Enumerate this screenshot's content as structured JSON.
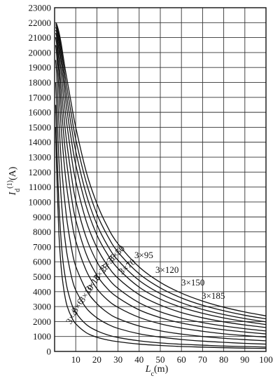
{
  "chart_data": {
    "type": "line",
    "xlabel": "L_c(m)",
    "ylabel": "I_d^(1)(A)",
    "xlabel_parts": {
      "main": "L",
      "sub": "c",
      "unit": "(m)"
    },
    "ylabel_parts": {
      "main": "I",
      "sub": "d",
      "sup": "(1)",
      "unit": "(A)"
    },
    "xlim": [
      0,
      100
    ],
    "ylim": [
      0,
      23000
    ],
    "grid": true,
    "x_ticks": [
      10,
      20,
      30,
      40,
      50,
      60,
      70,
      80,
      90,
      100
    ],
    "y_ticks": [
      0,
      1000,
      2000,
      3000,
      4000,
      5000,
      6000,
      7000,
      8000,
      9000,
      10000,
      11000,
      12000,
      13000,
      14000,
      15000,
      16000,
      17000,
      18000,
      19000,
      20000,
      21000,
      22000,
      23000
    ],
    "series": [
      {
        "name": "3×4",
        "x": [
          0.5,
          1,
          2,
          3,
          4,
          5,
          6,
          8,
          10,
          15,
          20,
          25,
          30,
          40,
          50,
          60,
          70,
          80,
          90,
          100
        ],
        "y": [
          15000,
          12000,
          8000,
          5800,
          4500,
          3600,
          3000,
          2300,
          1850,
          1250,
          950,
          770,
          650,
          490,
          400,
          330,
          290,
          250,
          220,
          200
        ]
      },
      {
        "name": "3×6",
        "x": [
          0.5,
          1,
          2,
          3,
          4,
          5,
          6,
          8,
          10,
          15,
          20,
          25,
          30,
          40,
          50,
          60,
          70,
          80,
          90,
          100
        ],
        "y": [
          16500,
          14000,
          10000,
          7600,
          6000,
          5000,
          4200,
          3200,
          2600,
          1800,
          1380,
          1110,
          930,
          710,
          570,
          480,
          420,
          360,
          330,
          290
        ]
      },
      {
        "name": "3×10",
        "x": [
          0.5,
          1,
          2,
          3,
          4,
          5,
          6,
          8,
          10,
          15,
          20,
          25,
          30,
          40,
          50,
          60,
          70,
          80,
          90,
          100
        ],
        "y": [
          18000,
          16500,
          13000,
          10500,
          8700,
          7400,
          6400,
          5000,
          4100,
          2900,
          2250,
          1830,
          1540,
          1180,
          960,
          800,
          690,
          610,
          540,
          490
        ]
      },
      {
        "name": "3×16",
        "x": [
          0.5,
          1,
          2,
          3,
          4,
          5,
          6,
          8,
          10,
          15,
          20,
          25,
          30,
          40,
          50,
          60,
          70,
          80,
          90,
          100
        ],
        "y": [
          19500,
          18500,
          15500,
          13000,
          11200,
          9800,
          8600,
          6900,
          5700,
          4100,
          3200,
          2600,
          2200,
          1700,
          1380,
          1160,
          1000,
          880,
          790,
          710
        ]
      },
      {
        "name": "3×25",
        "x": [
          0.5,
          1,
          2,
          3,
          4,
          5,
          6,
          8,
          10,
          15,
          20,
          25,
          30,
          40,
          50,
          60,
          70,
          80,
          90,
          100
        ],
        "y": [
          20500,
          19800,
          17500,
          15200,
          13400,
          11900,
          10700,
          8800,
          7400,
          5400,
          4200,
          3450,
          2950,
          2280,
          1850,
          1560,
          1350,
          1180,
          1060,
          960
        ]
      },
      {
        "name": "3×35",
        "x": [
          0.5,
          1,
          2,
          3,
          4,
          5,
          6,
          8,
          10,
          15,
          20,
          25,
          30,
          40,
          50,
          60,
          70,
          80,
          90,
          100
        ],
        "y": [
          21000,
          20500,
          18700,
          16700,
          15000,
          13500,
          12300,
          10300,
          8800,
          6500,
          5100,
          4200,
          3600,
          2780,
          2260,
          1900,
          1650,
          1450,
          1300,
          1170
        ]
      },
      {
        "name": "3×50",
        "x": [
          0.5,
          1,
          2,
          3,
          4,
          5,
          6,
          8,
          10,
          15,
          20,
          25,
          30,
          40,
          50,
          60,
          70,
          80,
          90,
          100
        ],
        "y": [
          21300,
          21000,
          19500,
          17800,
          16300,
          14900,
          13700,
          11700,
          10100,
          7600,
          6000,
          4950,
          4220,
          3260,
          2650,
          2230,
          1930,
          1700,
          1520,
          1370
        ]
      },
      {
        "name": "3×70",
        "x": [
          0.5,
          1,
          2,
          3,
          4,
          5,
          6,
          8,
          10,
          15,
          20,
          25,
          30,
          40,
          50,
          60,
          70,
          80,
          90,
          100
        ],
        "y": [
          21500,
          21300,
          20200,
          18800,
          17400,
          16100,
          15000,
          13000,
          11400,
          8700,
          6950,
          5750,
          4900,
          3800,
          3100,
          2600,
          2250,
          1980,
          1770,
          1600
        ]
      },
      {
        "name": "3×95",
        "x": [
          0.5,
          1,
          2,
          3,
          4,
          5,
          6,
          8,
          10,
          15,
          20,
          25,
          30,
          40,
          50,
          60,
          70,
          80,
          90,
          100
        ],
        "y": [
          21700,
          21500,
          20700,
          19500,
          18300,
          17100,
          16000,
          14100,
          12500,
          9700,
          7800,
          6500,
          5550,
          4300,
          3500,
          2950,
          2550,
          2240,
          2000,
          1800
        ]
      },
      {
        "name": "3×120",
        "x": [
          0.5,
          1,
          2,
          3,
          4,
          5,
          6,
          8,
          10,
          15,
          20,
          25,
          30,
          40,
          50,
          60,
          70,
          80,
          90,
          100
        ],
        "y": [
          21800,
          21700,
          21000,
          20000,
          18900,
          17800,
          16800,
          15000,
          13400,
          10500,
          8500,
          7100,
          6100,
          4750,
          3870,
          3260,
          2810,
          2470,
          2200,
          1980
        ]
      },
      {
        "name": "3×150",
        "x": [
          0.5,
          1,
          2,
          3,
          4,
          5,
          6,
          8,
          10,
          15,
          20,
          25,
          30,
          40,
          50,
          60,
          70,
          80,
          90,
          100
        ],
        "y": [
          21900,
          21800,
          21200,
          20400,
          19400,
          18400,
          17500,
          15800,
          14200,
          11300,
          9200,
          7750,
          6650,
          5200,
          4250,
          3580,
          3090,
          2720,
          2420,
          2180
        ]
      },
      {
        "name": "3×185",
        "x": [
          0.5,
          1,
          2,
          3,
          4,
          5,
          6,
          8,
          10,
          15,
          20,
          25,
          30,
          40,
          50,
          60,
          70,
          80,
          90,
          100
        ],
        "y": [
          22000,
          21900,
          21400,
          20700,
          19800,
          18900,
          18100,
          16500,
          15000,
          12000,
          9900,
          8350,
          7200,
          5650,
          4620,
          3900,
          3370,
          2960,
          2640,
          2380
        ]
      }
    ]
  }
}
